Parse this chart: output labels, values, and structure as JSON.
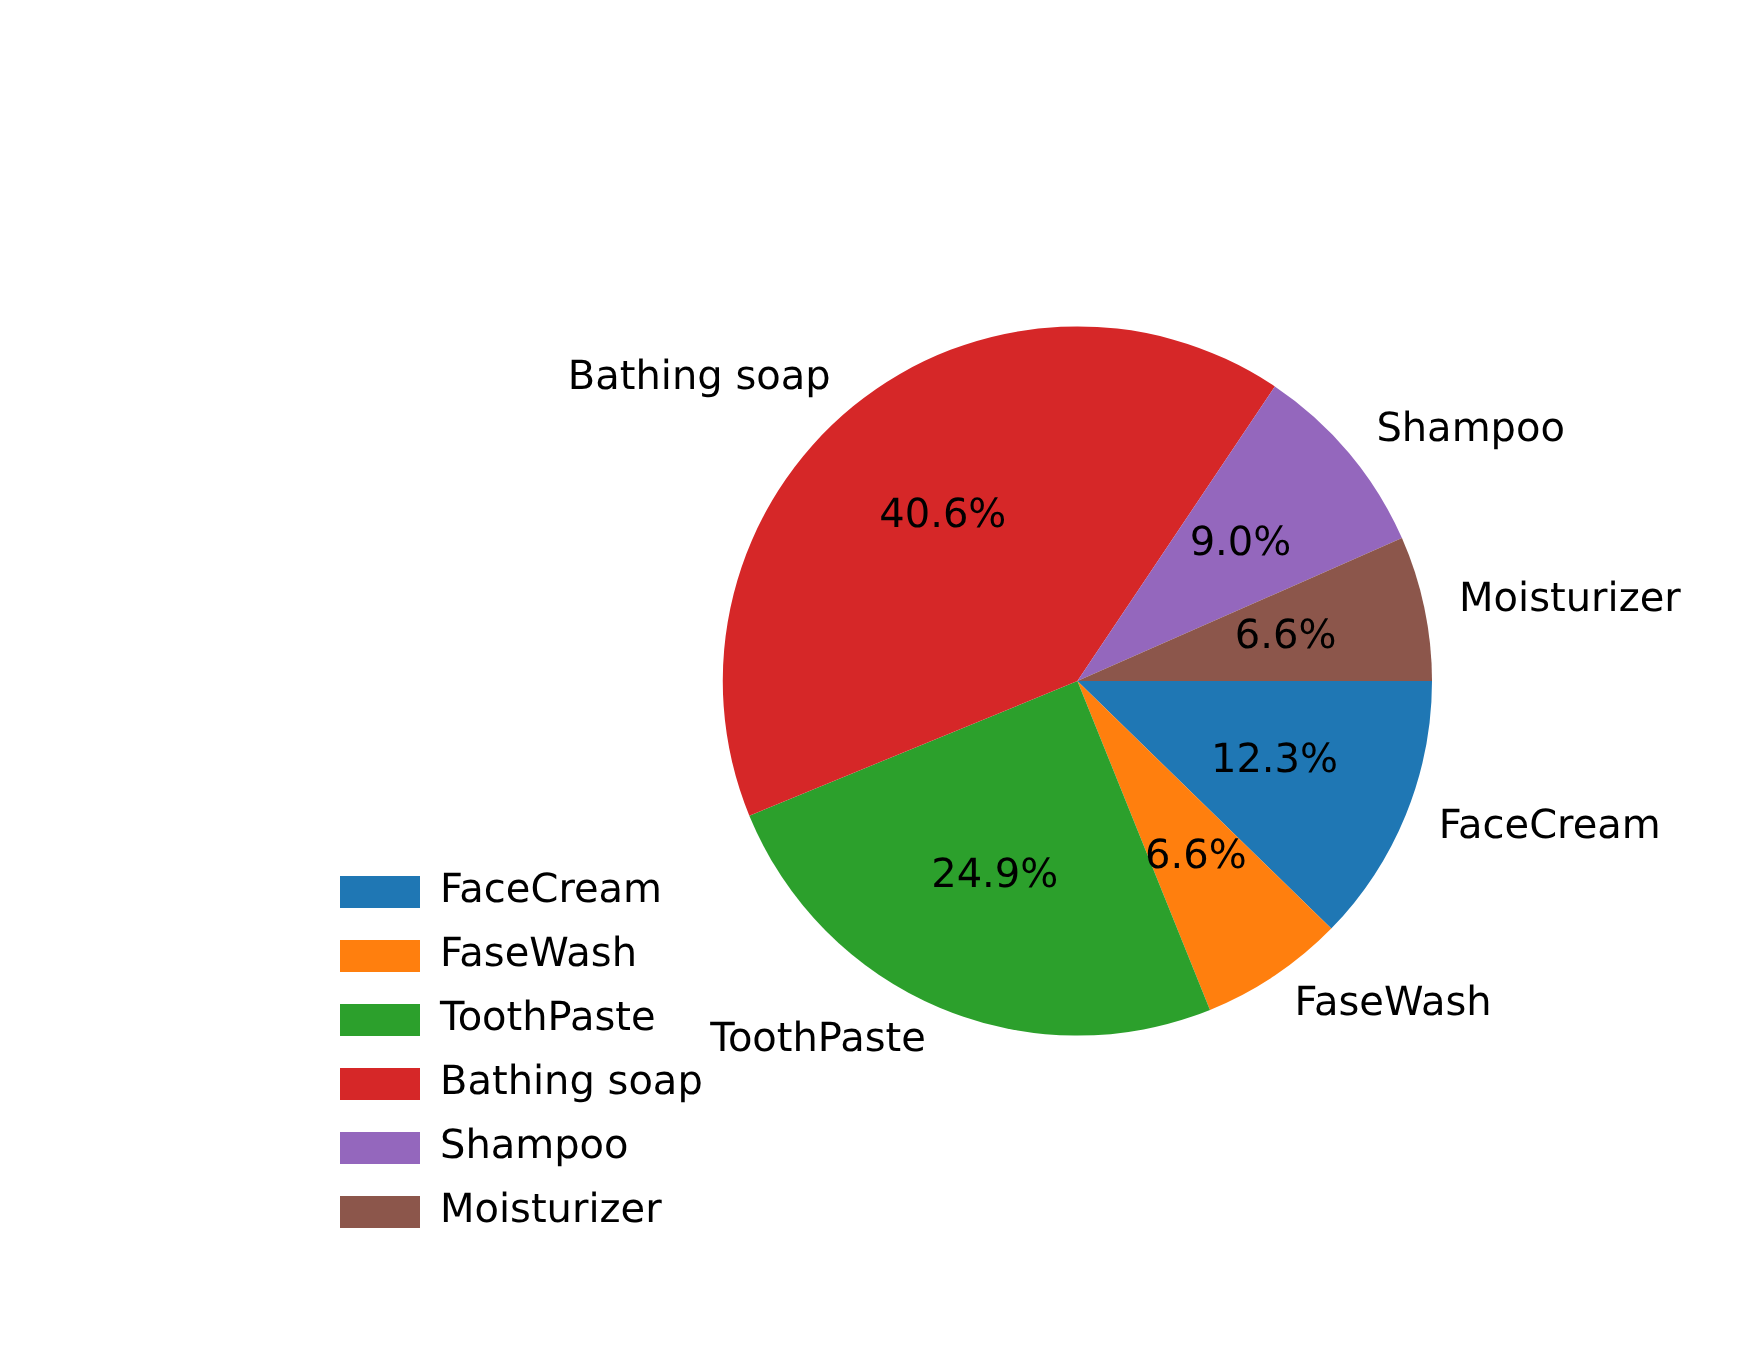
{
  "chart_data": {
    "type": "pie",
    "categories": [
      "FaceCream",
      "FaseWash",
      "ToothPaste",
      "Bathing soap",
      "Shampoo",
      "Moisturizer"
    ],
    "values": [
      12.3,
      6.6,
      24.9,
      40.6,
      9.0,
      6.6
    ],
    "value_labels": [
      "12.3%",
      "6.6%",
      "24.9%",
      "40.6%",
      "9.0%",
      "6.6%"
    ],
    "colors": [
      "#1f77b4",
      "#ff7f0e",
      "#2ca02c",
      "#d62728",
      "#9467bd",
      "#8c564b"
    ],
    "legend": "bottom left"
  }
}
